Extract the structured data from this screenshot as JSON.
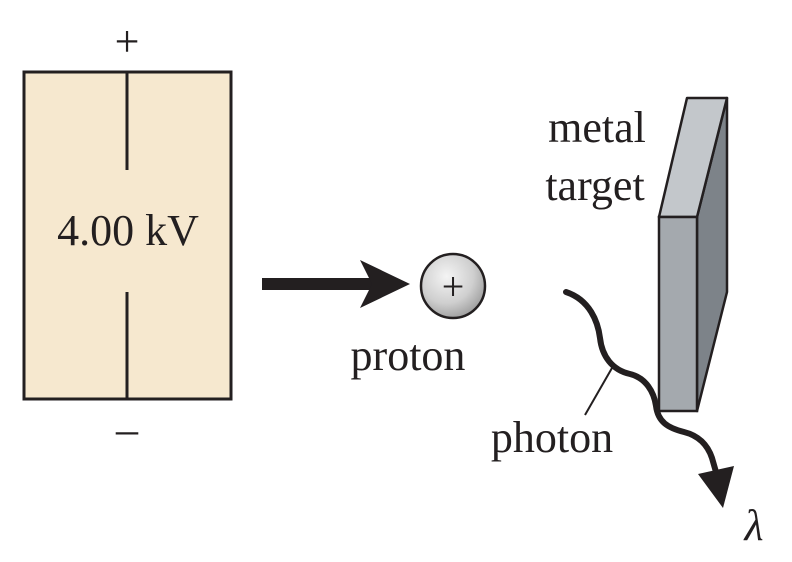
{
  "supply": {
    "positive_sign": "+",
    "voltage_label": "4.00 kV",
    "negative_sign": "–",
    "fill_color": "#f6e8cf"
  },
  "proton": {
    "symbol": "+",
    "label": "proton"
  },
  "target": {
    "label_line1": "metal",
    "label_line2": "target",
    "front_color": "#a4a9ae",
    "side_color": "#7d8389",
    "top_color": "#c3c7cb"
  },
  "photon": {
    "label": "photon",
    "wavelength_symbol": "λ"
  }
}
